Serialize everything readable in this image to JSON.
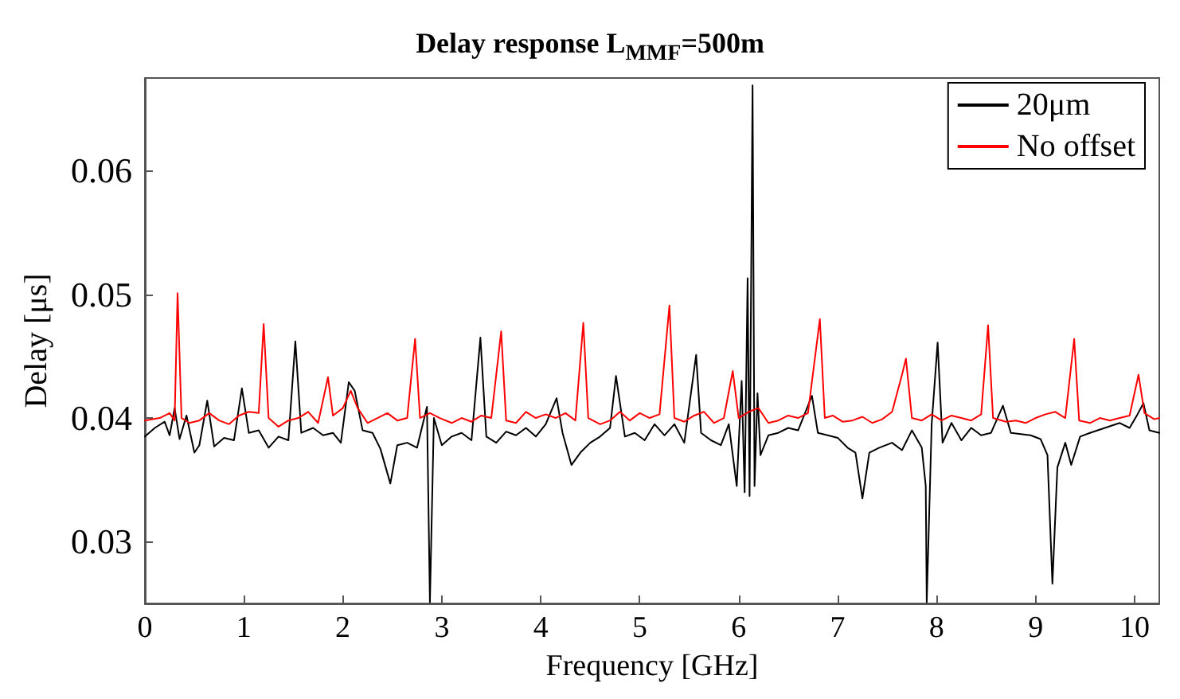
{
  "chart_data": {
    "type": "line",
    "title": "Delay response L$_{MMF}$=500m",
    "xlabel": "Frequency [GHz]",
    "ylabel": "Delay [μs]",
    "xlim": [
      0,
      10.25
    ],
    "xticks": [
      0,
      1,
      2,
      3,
      4,
      5,
      6,
      7,
      8,
      9,
      10
    ],
    "ylim": [
      0.025,
      0.0675
    ],
    "yticks": [
      0.03,
      0.04,
      0.05,
      0.06
    ],
    "grid": false,
    "legend": "top right",
    "marker": "none",
    "line_style": "solid",
    "series": [
      {
        "name": "20μm",
        "color": "#000000",
        "x": [
          0,
          0.1,
          0.2,
          0.25,
          0.3,
          0.35,
          0.42,
          0.5,
          0.55,
          0.63,
          0.7,
          0.8,
          0.9,
          0.98,
          1.05,
          1.15,
          1.25,
          1.35,
          1.45,
          1.52,
          1.58,
          1.7,
          1.8,
          1.9,
          1.98,
          2.06,
          2.12,
          2.2,
          2.3,
          2.38,
          2.48,
          2.55,
          2.65,
          2.75,
          2.85,
          2.88,
          2.92,
          3.0,
          3.1,
          3.2,
          3.3,
          3.39,
          3.45,
          3.55,
          3.65,
          3.75,
          3.85,
          3.95,
          4.05,
          4.16,
          4.22,
          4.31,
          4.4,
          4.5,
          4.6,
          4.7,
          4.76,
          4.85,
          4.95,
          5.05,
          5.15,
          5.25,
          5.35,
          5.45,
          5.57,
          5.62,
          5.72,
          5.82,
          5.9,
          5.98,
          6.03,
          6.06,
          6.09,
          6.11,
          6.14,
          6.16,
          6.19,
          6.22,
          6.3,
          6.4,
          6.5,
          6.6,
          6.74,
          6.8,
          6.9,
          7.0,
          7.1,
          7.18,
          7.25,
          7.32,
          7.42,
          7.55,
          7.65,
          7.75,
          7.85,
          7.89,
          7.9,
          7.95,
          8.01,
          8.06,
          8.15,
          8.25,
          8.35,
          8.45,
          8.55,
          8.67,
          8.75,
          8.85,
          8.95,
          9.05,
          9.12,
          9.17,
          9.22,
          9.3,
          9.36,
          9.45,
          9.55,
          9.7,
          9.85,
          9.95,
          10.03,
          10.09,
          10.15,
          10.25
        ],
        "values": [
          0.0385,
          0.0392,
          0.0397,
          0.0386,
          0.0408,
          0.0383,
          0.0402,
          0.0372,
          0.0378,
          0.0414,
          0.0377,
          0.0384,
          0.0382,
          0.0424,
          0.0388,
          0.039,
          0.0376,
          0.0385,
          0.0382,
          0.0462,
          0.0388,
          0.0392,
          0.0386,
          0.0388,
          0.038,
          0.0429,
          0.0422,
          0.039,
          0.0388,
          0.0375,
          0.0347,
          0.0378,
          0.038,
          0.0376,
          0.0409,
          0.0251,
          0.04,
          0.0378,
          0.0385,
          0.0388,
          0.0382,
          0.0465,
          0.0385,
          0.038,
          0.0389,
          0.0386,
          0.0392,
          0.0385,
          0.0395,
          0.0416,
          0.0388,
          0.0362,
          0.0372,
          0.038,
          0.0385,
          0.0392,
          0.0434,
          0.0385,
          0.0388,
          0.0382,
          0.0395,
          0.0386,
          0.0395,
          0.038,
          0.0451,
          0.0388,
          0.0382,
          0.0378,
          0.0395,
          0.0345,
          0.043,
          0.034,
          0.0513,
          0.0337,
          0.0669,
          0.0345,
          0.042,
          0.037,
          0.0386,
          0.0388,
          0.0392,
          0.039,
          0.0418,
          0.0388,
          0.0386,
          0.0384,
          0.0376,
          0.0372,
          0.0335,
          0.0372,
          0.0376,
          0.038,
          0.0374,
          0.039,
          0.0376,
          0.0345,
          0.0251,
          0.0395,
          0.0461,
          0.038,
          0.0396,
          0.0382,
          0.0392,
          0.0386,
          0.0388,
          0.041,
          0.0388,
          0.0387,
          0.0386,
          0.0383,
          0.037,
          0.0266,
          0.036,
          0.038,
          0.0362,
          0.0385,
          0.0388,
          0.0392,
          0.0396,
          0.0392,
          0.0403,
          0.0412,
          0.039,
          0.0388
        ]
      },
      {
        "name": "No offset",
        "color": "#ff0000",
        "x": [
          0,
          0.15,
          0.25,
          0.3,
          0.33,
          0.37,
          0.45,
          0.55,
          0.65,
          0.75,
          0.85,
          0.95,
          1.05,
          1.15,
          1.2,
          1.25,
          1.35,
          1.45,
          1.55,
          1.65,
          1.75,
          1.85,
          1.9,
          2.0,
          2.08,
          2.15,
          2.25,
          2.35,
          2.45,
          2.55,
          2.65,
          2.73,
          2.78,
          2.88,
          2.98,
          3.1,
          3.2,
          3.3,
          3.4,
          3.5,
          3.6,
          3.65,
          3.75,
          3.85,
          3.95,
          4.05,
          4.15,
          4.25,
          4.35,
          4.43,
          4.48,
          4.6,
          4.7,
          4.8,
          4.9,
          5.0,
          5.1,
          5.2,
          5.3,
          5.35,
          5.45,
          5.55,
          5.65,
          5.75,
          5.85,
          5.94,
          6.0,
          6.1,
          6.2,
          6.3,
          6.4,
          6.5,
          6.6,
          6.7,
          6.82,
          6.87,
          6.95,
          7.05,
          7.15,
          7.25,
          7.35,
          7.45,
          7.55,
          7.65,
          7.69,
          7.75,
          7.85,
          7.95,
          8.05,
          8.15,
          8.25,
          8.35,
          8.45,
          8.52,
          8.57,
          8.7,
          8.8,
          8.9,
          9.0,
          9.1,
          9.2,
          9.3,
          9.39,
          9.44,
          9.55,
          9.65,
          9.75,
          9.85,
          9.95,
          10.04,
          10.1,
          10.2,
          10.25
        ],
        "values": [
          0.0398,
          0.04,
          0.0404,
          0.0398,
          0.0501,
          0.04,
          0.0396,
          0.0398,
          0.0404,
          0.0398,
          0.0395,
          0.0402,
          0.0405,
          0.0404,
          0.0476,
          0.04,
          0.0393,
          0.0398,
          0.04,
          0.0405,
          0.0396,
          0.0433,
          0.0402,
          0.0408,
          0.0422,
          0.0408,
          0.0396,
          0.04,
          0.0404,
          0.0398,
          0.04,
          0.0464,
          0.04,
          0.0404,
          0.04,
          0.0396,
          0.04,
          0.0397,
          0.0402,
          0.04,
          0.047,
          0.0398,
          0.0396,
          0.0405,
          0.04,
          0.0403,
          0.04,
          0.0404,
          0.0398,
          0.0477,
          0.04,
          0.0395,
          0.0398,
          0.0405,
          0.0398,
          0.0404,
          0.04,
          0.0403,
          0.0491,
          0.04,
          0.0397,
          0.0402,
          0.0405,
          0.0396,
          0.04,
          0.0438,
          0.04,
          0.0405,
          0.0408,
          0.0396,
          0.0398,
          0.0402,
          0.04,
          0.0404,
          0.048,
          0.04,
          0.0402,
          0.0397,
          0.0398,
          0.0401,
          0.0396,
          0.0399,
          0.0405,
          0.0435,
          0.0448,
          0.04,
          0.0398,
          0.0403,
          0.0398,
          0.0402,
          0.04,
          0.0398,
          0.0403,
          0.0475,
          0.04,
          0.0397,
          0.0398,
          0.0396,
          0.04,
          0.0403,
          0.0405,
          0.04,
          0.0464,
          0.0398,
          0.0396,
          0.04,
          0.0398,
          0.04,
          0.0402,
          0.0435,
          0.0404,
          0.0399,
          0.04
        ]
      }
    ]
  }
}
